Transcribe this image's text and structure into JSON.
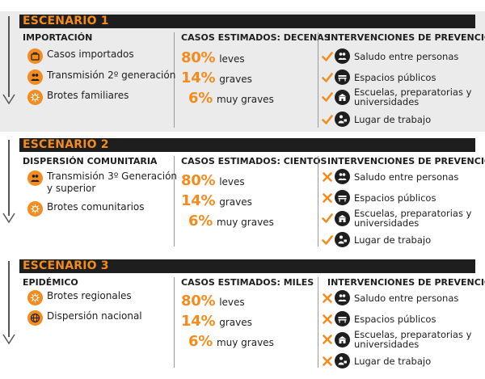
{
  "colors": {
    "accent": "#f28c1e",
    "dark": "#1e1e1e",
    "scenario1_bg": "#ebebeb"
  },
  "scenarios": [
    {
      "title": "ESCENARIO 1",
      "col1_title": "IMPORTACIÓN",
      "col2_title": "CASOS ESTIMADOS: DECENAS",
      "col3_title": "INTERVENCIONES DE PREVENCIÓN",
      "origins": [
        {
          "icon": "suitcase-icon",
          "text": "Casos importados"
        },
        {
          "icon": "people-icon",
          "text": "Transmisión 2º generación"
        },
        {
          "icon": "virus-icon",
          "text": "Brotes familiares"
        }
      ],
      "stats": [
        {
          "pct": "80%",
          "label": "leves"
        },
        {
          "pct": "14%",
          "label": "graves"
        },
        {
          "pct": "6%",
          "label": "muy graves"
        }
      ],
      "interventions": [
        {
          "mark": "check",
          "icon": "people-icon",
          "text": "Saludo entre personas"
        },
        {
          "mark": "check",
          "icon": "bench-icon",
          "text": "Espacios públicos"
        },
        {
          "mark": "check",
          "icon": "school-icon",
          "text": "Escuelas, preparatorias y\nuniversidades"
        },
        {
          "mark": "check",
          "icon": "worker-icon",
          "text": "Lugar de trabajo"
        }
      ]
    },
    {
      "title": "ESCENARIO 2",
      "col1_title": "DISPERSIÓN COMUNITARIA",
      "col2_title": "CASOS ESTIMADOS: CIENTOS",
      "col3_title": "INTERVENCIONES DE PREVENCIÓN",
      "origins": [
        {
          "icon": "people-icon",
          "text": "Transmisión 3º Generación\ny superior"
        },
        {
          "icon": "virus-icon",
          "text": "Brotes comunitarios"
        }
      ],
      "stats": [
        {
          "pct": "80%",
          "label": "leves"
        },
        {
          "pct": "14%",
          "label": "graves"
        },
        {
          "pct": "6%",
          "label": "muy graves"
        }
      ],
      "interventions": [
        {
          "mark": "cross",
          "icon": "people-icon",
          "text": "Saludo entre personas"
        },
        {
          "mark": "cross",
          "icon": "bench-icon",
          "text": "Espacios públicos"
        },
        {
          "mark": "check",
          "icon": "school-icon",
          "text": "Escuelas, preparatorias y\nuniversidades"
        },
        {
          "mark": "check",
          "icon": "worker-icon",
          "text": "Lugar de trabajo"
        }
      ]
    },
    {
      "title": "ESCENARIO 3",
      "col1_title": "EPIDÉMICO",
      "col2_title": "CASOS ESTIMADOS: MILES",
      "col3_title": "INTERVENCIONES DE PREVENCIÓN",
      "origins": [
        {
          "icon": "virus-icon",
          "text": "Brotes regionales"
        },
        {
          "icon": "globe-icon",
          "text": "Dispersión nacional"
        }
      ],
      "stats": [
        {
          "pct": "80%",
          "label": "leves"
        },
        {
          "pct": "14%",
          "label": "graves"
        },
        {
          "pct": "6%",
          "label": "muy graves"
        }
      ],
      "interventions": [
        {
          "mark": "cross",
          "icon": "people-icon",
          "text": "Saludo entre personas"
        },
        {
          "mark": "cross",
          "icon": "bench-icon",
          "text": "Espacios públicos"
        },
        {
          "mark": "cross",
          "icon": "school-icon",
          "text": "Escuelas, preparatorias y\nuniversidades"
        },
        {
          "mark": "cross",
          "icon": "worker-icon",
          "text": "Lugar de trabajo"
        }
      ]
    }
  ]
}
